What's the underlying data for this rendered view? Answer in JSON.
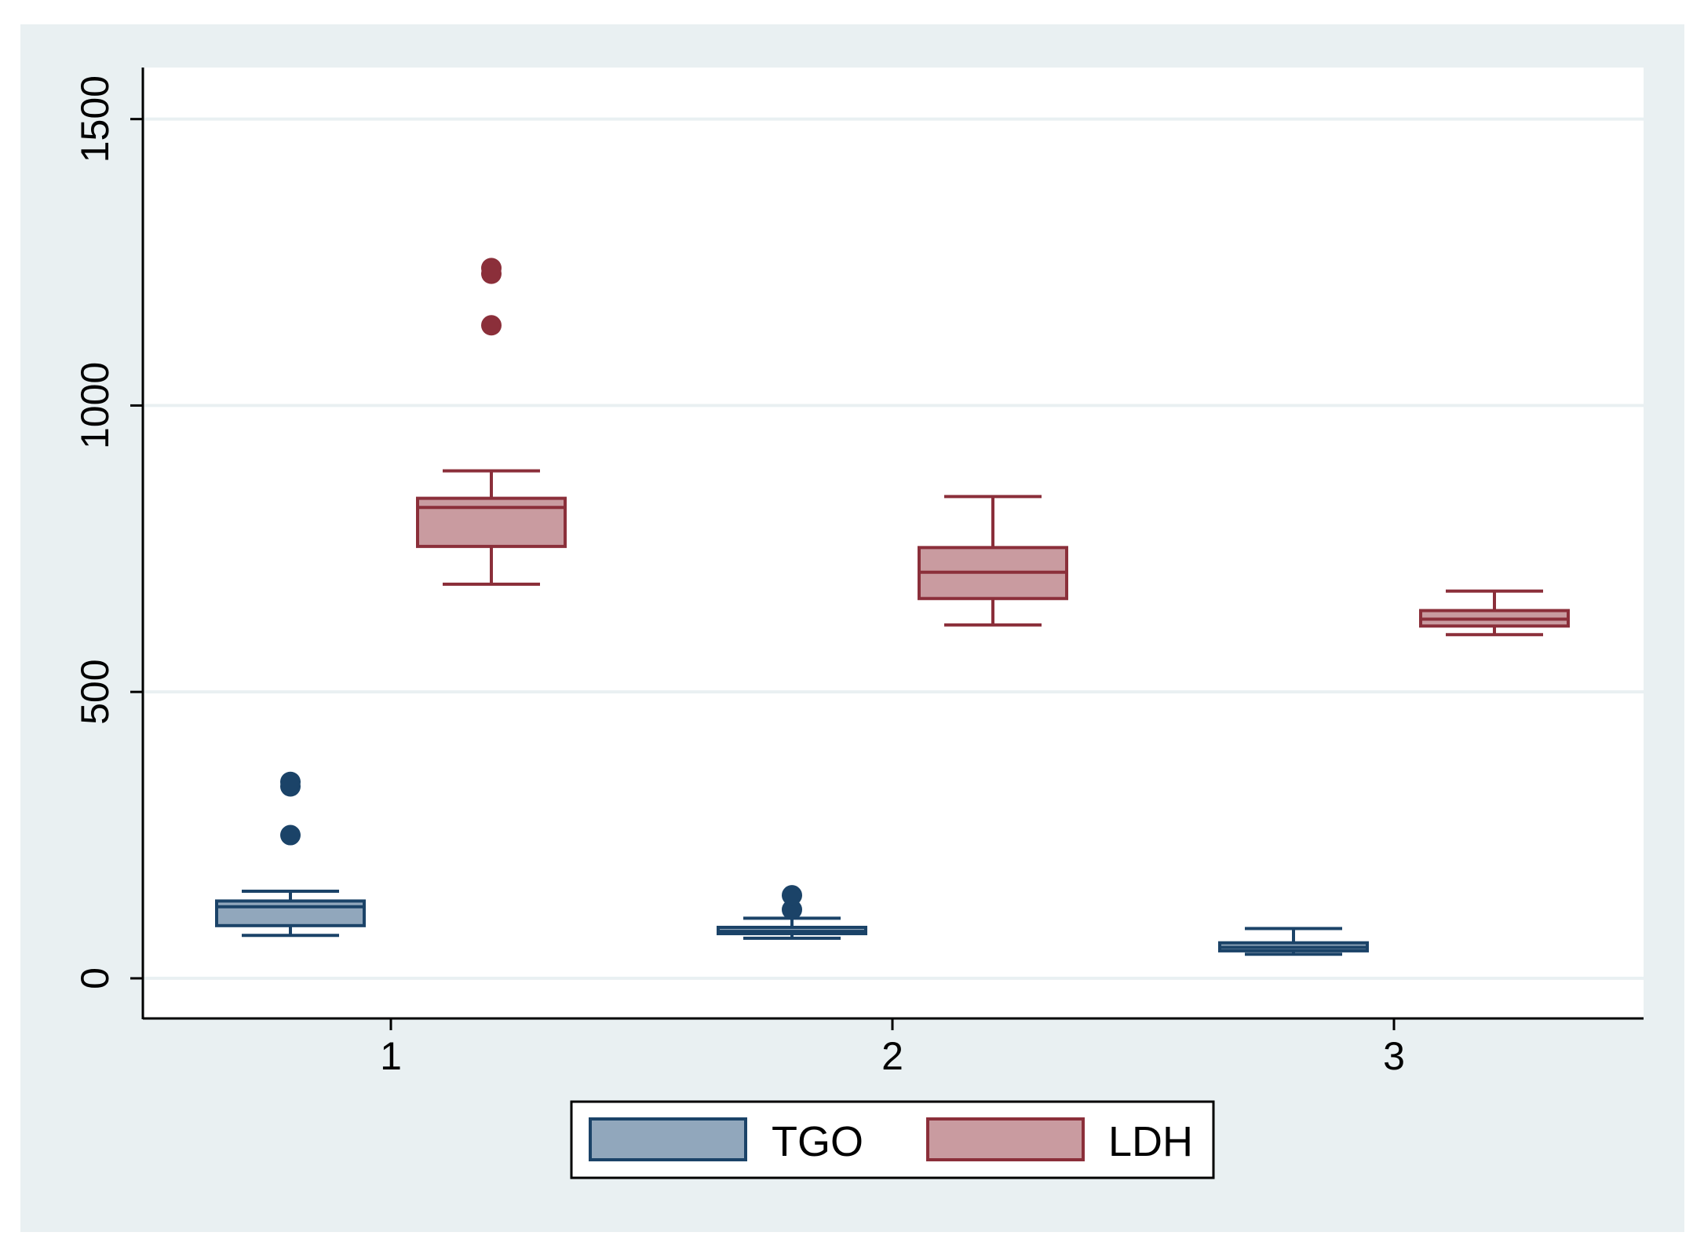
{
  "chart_data": {
    "type": "box",
    "title": "",
    "xlabel": "",
    "ylabel": "",
    "categories": [
      "1",
      "2",
      "3"
    ],
    "ylim": [
      -70,
      1590
    ],
    "yticks": [
      0,
      500,
      1000,
      1500
    ],
    "ytick_labels": [
      "0",
      "500",
      "1000",
      "1500"
    ],
    "grid": true,
    "legend_position": "bottom-center",
    "series": [
      {
        "name": "TGO",
        "fill": "#91a7bc",
        "stroke": "#1b4368",
        "boxes": [
          {
            "category": "1",
            "whisker_low": 75,
            "q1": 92,
            "median": 125,
            "q3": 135,
            "whisker_high": 152,
            "outliers": [
              335,
              343,
              250
            ]
          },
          {
            "category": "2",
            "whisker_low": 70,
            "q1": 78,
            "median": 82,
            "q3": 89,
            "whisker_high": 105,
            "outliers": [
              120,
              145
            ]
          },
          {
            "category": "3",
            "whisker_low": 42,
            "q1": 48,
            "median": 54,
            "q3": 62,
            "whisker_high": 87,
            "outliers": []
          }
        ]
      },
      {
        "name": "LDH",
        "fill": "#c99ba0",
        "stroke": "#8b2f3a",
        "boxes": [
          {
            "category": "1",
            "whisker_low": 688,
            "q1": 754,
            "median": 822,
            "q3": 838,
            "whisker_high": 886,
            "outliers": [
              1240,
              1230,
              1140
            ]
          },
          {
            "category": "2",
            "whisker_low": 617,
            "q1": 663,
            "median": 709,
            "q3": 752,
            "whisker_high": 841,
            "outliers": []
          },
          {
            "category": "3",
            "whisker_low": 600,
            "q1": 615,
            "median": 627,
            "q3": 642,
            "whisker_high": 676,
            "outliers": []
          }
        ]
      }
    ]
  }
}
